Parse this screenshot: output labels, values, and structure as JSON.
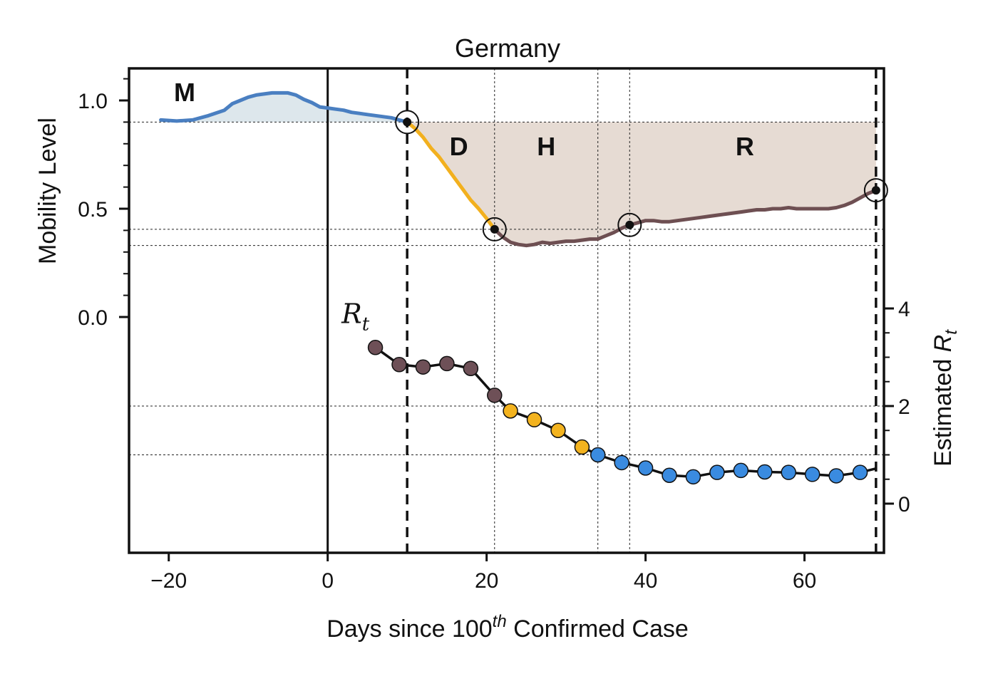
{
  "chart_data": {
    "type": "line",
    "title": "Germany",
    "xlabel_parts": {
      "prefix": "Days since ",
      "number": "100",
      "sup": "th",
      "suffix": " Confirmed Case"
    },
    "ylabel_left": "Mobility Level",
    "ylabel_right_prefix": "Estimated ",
    "ylabel_right_var": "R",
    "ylabel_right_sub": "t",
    "xlim": [
      -25,
      70
    ],
    "x_ticks": [
      -20,
      0,
      20,
      40,
      60
    ],
    "x_tick_labels": [
      "−20",
      "0",
      "20",
      "40",
      "60"
    ],
    "left_ticks": [
      0.0,
      0.5,
      1.0
    ],
    "left_tick_labels": [
      "0.0",
      "0.5",
      "1.0"
    ],
    "left_minor_ticks": [
      0.1,
      0.2,
      0.3,
      0.4,
      0.6,
      0.7,
      0.8,
      0.9,
      1.1
    ],
    "right_ticks": [
      0,
      2,
      4
    ],
    "right_tick_labels": [
      "0",
      "2",
      "4"
    ],
    "right_minor_ticks": [
      0.5,
      1,
      1.5,
      2.5,
      3,
      3.5
    ],
    "colors": {
      "baseline": "#4a7fc1",
      "decline": "#f2b01e",
      "recovery": "#6e4f52",
      "rt_early": "#6e5057",
      "rt_decline": "#f3b31f",
      "rt_late": "#3a8be0",
      "fill_baseline": "#dde7ec",
      "fill_phases": "#e6dbd3"
    },
    "reference_lines": {
      "mobility_baseline": 0.9,
      "mobility_trough_marker": 0.405,
      "mobility_minimum": 0.33,
      "rt_levels": [
        2,
        1
      ]
    },
    "vertical_lines": {
      "solid": [
        0
      ],
      "dashed": [
        10,
        69
      ],
      "dotted": [
        21,
        34,
        38
      ]
    },
    "phase_labels": [
      {
        "text": "M",
        "x": -18,
        "y": 1.04
      },
      {
        "text": "D",
        "x": 16.5,
        "y": 0.79
      },
      {
        "text": "H",
        "x": 27.5,
        "y": 0.79
      },
      {
        "text": "R",
        "x": 52.5,
        "y": 0.79
      }
    ],
    "rt_annotation": {
      "var": "R",
      "sub": "t",
      "x": 3.5,
      "y_rt": 3.7
    },
    "key_points": [
      {
        "x": 10,
        "y": 0.9
      },
      {
        "x": 21,
        "y": 0.405
      },
      {
        "x": 38,
        "y": 0.425
      },
      {
        "x": 69,
        "y": 0.585
      }
    ],
    "mobility_series": [
      {
        "name": "baseline",
        "color_key": "baseline",
        "x": [
          -21,
          -19,
          -17,
          -15,
          -13,
          -12,
          -11,
          -10,
          -9,
          -8,
          -7,
          -6,
          -5,
          -4,
          -3,
          -2,
          -1,
          0,
          1,
          2,
          3,
          4,
          5,
          6,
          7,
          8,
          9,
          10
        ],
        "y": [
          0.91,
          0.905,
          0.91,
          0.93,
          0.955,
          0.985,
          1.0,
          1.015,
          1.025,
          1.03,
          1.035,
          1.035,
          1.035,
          1.025,
          1.005,
          0.99,
          0.97,
          0.965,
          0.96,
          0.955,
          0.945,
          0.94,
          0.935,
          0.93,
          0.925,
          0.92,
          0.91,
          0.9
        ]
      },
      {
        "name": "decline",
        "color_key": "decline",
        "x": [
          10,
          11,
          12,
          13,
          14,
          15,
          16,
          17,
          18,
          19,
          20,
          21
        ],
        "y": [
          0.9,
          0.87,
          0.83,
          0.78,
          0.74,
          0.69,
          0.64,
          0.59,
          0.54,
          0.5,
          0.455,
          0.405
        ]
      },
      {
        "name": "recovery",
        "color_key": "recovery",
        "x": [
          21,
          22,
          23,
          24,
          25,
          26,
          27,
          28,
          29,
          30,
          31,
          32,
          33,
          34,
          35,
          36,
          37,
          38,
          39,
          40,
          41,
          42,
          43,
          44,
          45,
          46,
          47,
          48,
          49,
          50,
          51,
          52,
          53,
          54,
          55,
          56,
          57,
          58,
          59,
          60,
          61,
          62,
          63,
          64,
          65,
          66,
          67,
          68,
          69
        ],
        "y": [
          0.405,
          0.37,
          0.345,
          0.335,
          0.33,
          0.335,
          0.345,
          0.34,
          0.345,
          0.35,
          0.35,
          0.355,
          0.36,
          0.36,
          0.375,
          0.39,
          0.41,
          0.425,
          0.435,
          0.445,
          0.445,
          0.44,
          0.44,
          0.445,
          0.45,
          0.455,
          0.46,
          0.465,
          0.47,
          0.475,
          0.48,
          0.485,
          0.49,
          0.495,
          0.495,
          0.5,
          0.5,
          0.505,
          0.5,
          0.5,
          0.5,
          0.5,
          0.5,
          0.505,
          0.515,
          0.53,
          0.55,
          0.57,
          0.585
        ]
      }
    ],
    "rt_series": {
      "name": "Estimated Rt",
      "x": [
        6,
        9,
        12,
        15,
        18,
        21,
        23,
        26,
        29,
        32,
        34,
        37,
        40,
        43,
        46,
        49,
        52,
        55,
        58,
        61,
        64,
        67,
        69
      ],
      "y": [
        3.2,
        2.85,
        2.8,
        2.87,
        2.77,
        2.22,
        1.9,
        1.72,
        1.5,
        1.16,
        1.0,
        0.84,
        0.73,
        0.58,
        0.55,
        0.64,
        0.68,
        0.65,
        0.64,
        0.6,
        0.57,
        0.64,
        0.72
      ],
      "color_keys": [
        "rt_early",
        "rt_early",
        "rt_early",
        "rt_early",
        "rt_early",
        "rt_early",
        "rt_decline",
        "rt_decline",
        "rt_decline",
        "rt_decline",
        "rt_late",
        "rt_late",
        "rt_late",
        "rt_late",
        "rt_late",
        "rt_late",
        "rt_late",
        "rt_late",
        "rt_late",
        "rt_late",
        "rt_late",
        "rt_late",
        "rt_late"
      ],
      "markers": [
        true,
        true,
        true,
        true,
        true,
        true,
        true,
        true,
        true,
        true,
        true,
        true,
        true,
        true,
        true,
        true,
        true,
        true,
        true,
        true,
        true,
        true,
        false
      ]
    }
  }
}
